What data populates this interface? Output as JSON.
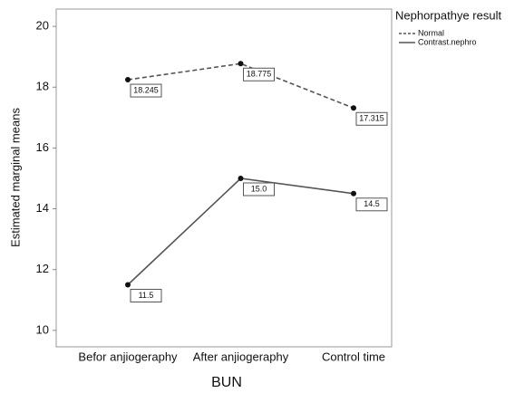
{
  "chart_data": {
    "type": "line",
    "x_label": "BUN",
    "y_label": "Estimated marginal means",
    "legend_title": "Nephorpathye result",
    "categories": [
      "Befor anjiogeraphy",
      "After anjiogeraphy",
      "Control time"
    ],
    "series": [
      {
        "name": "Normal",
        "color": "#555555",
        "dashed": true,
        "values": [
          18.245,
          18.775,
          17.315
        ],
        "value_labels": [
          "18.245",
          "18.775",
          "17.315"
        ]
      },
      {
        "name": "Contrast.nephro",
        "color": "#555555",
        "dashed": false,
        "values": [
          11.5,
          15.0,
          14.5
        ],
        "value_labels": [
          "11.5",
          "15.0",
          "14.5"
        ]
      }
    ],
    "ylim": [
      9.46,
      20.57
    ],
    "yticks": [
      10,
      12,
      14,
      16,
      18,
      20
    ],
    "grid": false,
    "legend": "right"
  }
}
